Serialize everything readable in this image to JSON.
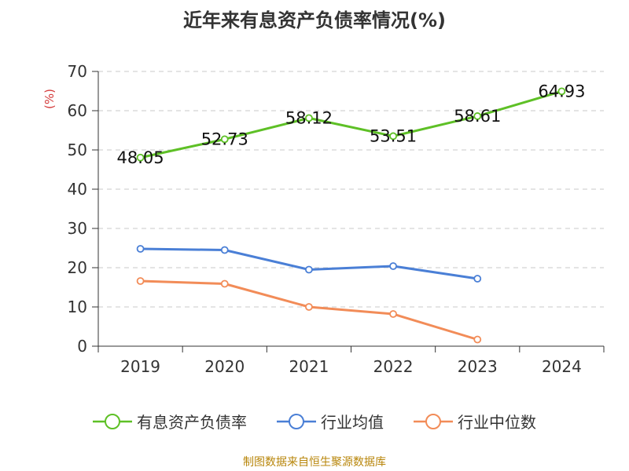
{
  "chart_data": {
    "type": "line",
    "title": "近年来有息资产负债率情况(%)",
    "ylabel": "(%)",
    "xlabel": "",
    "categories": [
      "2019",
      "2020",
      "2021",
      "2022",
      "2023",
      "2024"
    ],
    "ylim": [
      0,
      70
    ],
    "yticks": [
      0,
      10,
      20,
      30,
      40,
      50,
      60,
      70
    ],
    "grid": true,
    "legend_position": "bottom",
    "series": [
      {
        "name": "有息资产负债率",
        "color": "#5ec026",
        "values": [
          48.05,
          52.73,
          58.12,
          53.51,
          58.61,
          64.93
        ],
        "data_labels": [
          "48.05",
          "52.73",
          "58.12",
          "53.51",
          "58.61",
          "64.93"
        ]
      },
      {
        "name": "行业均值",
        "color": "#4a7fd6",
        "values": [
          24.8,
          24.5,
          19.5,
          20.4,
          17.2,
          null
        ]
      },
      {
        "name": "行业中位数",
        "color": "#f28c58",
        "values": [
          16.6,
          15.9,
          10.0,
          8.2,
          1.7,
          null
        ]
      }
    ],
    "source": "制图数据来自恒生聚源数据库"
  }
}
